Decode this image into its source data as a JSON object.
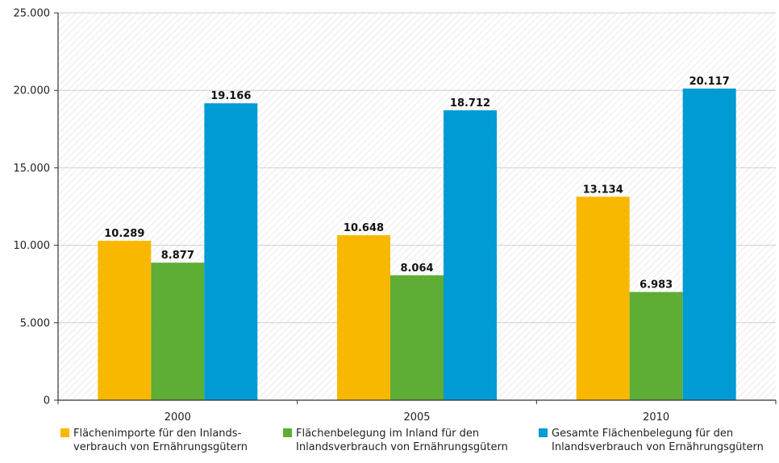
{
  "chart_data": {
    "type": "bar",
    "categories": [
      "2000",
      "2005",
      "2010"
    ],
    "series": [
      {
        "name": "Flächenimporte für den Inlandsverbrauch von Ernährungsgütern",
        "legend_lines": [
          "Flächenimporte für den Inlands-",
          "verbrauch von Ernährungsgütern"
        ],
        "color": "#F9B800",
        "values": [
          10289,
          10648,
          13134
        ],
        "labels": [
          "10.289",
          "10.648",
          "13.134"
        ]
      },
      {
        "name": "Flächenbelegung im Inland für den Inlandsverbrauch von Ernährungsgütern",
        "legend_lines": [
          "Flächenbelegung im Inland für den",
          "Inlandsverbrauch von Ernährungsgütern"
        ],
        "color": "#5EAD35",
        "values": [
          8877,
          8064,
          6983
        ],
        "labels": [
          "8.877",
          "8.064",
          "6.983"
        ]
      },
      {
        "name": "Gesamte Flächenbelegung für den Inlandsverbrauch von Ernährungsgütern",
        "legend_lines": [
          "Gesamte Flächenbelegung für den",
          "Inlandsverbrauch von Ernährungsgütern"
        ],
        "color": "#009BD5",
        "values": [
          19166,
          18712,
          20117
        ],
        "labels": [
          "19.166",
          "18.712",
          "20.117"
        ]
      }
    ],
    "ylim": [
      0,
      25000
    ],
    "yticks": [
      0,
      5000,
      10000,
      15000,
      20000,
      25000
    ],
    "ytick_labels": [
      "0",
      "5.000",
      "10.000",
      "15.000",
      "20.000",
      "25.000"
    ],
    "title": "",
    "xlabel": "",
    "ylabel": "",
    "grid": true,
    "legend_position": "bottom"
  }
}
